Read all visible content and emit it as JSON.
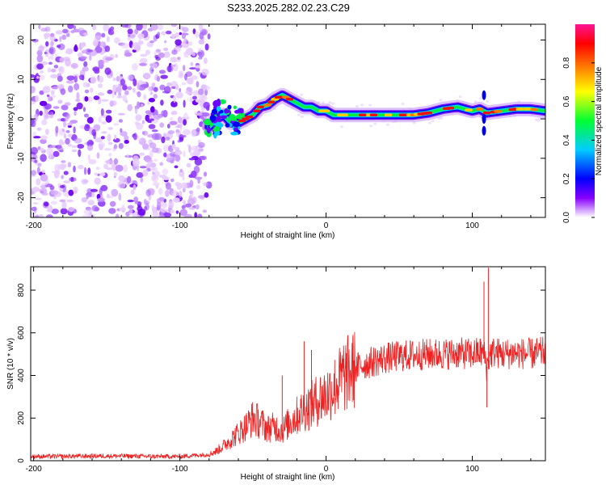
{
  "title": "S233.2025.282.02.23.C29",
  "chart_data": [
    {
      "type": "heatmap",
      "panel": "spectrogram",
      "xlabel": "Height of straight line (km)",
      "ylabel": "Frequency (Hz)",
      "xlim": [
        -202,
        150
      ],
      "ylim": [
        -25,
        24
      ],
      "x_ticks": [
        -200,
        -100,
        0,
        100
      ],
      "x_tick_labels": [
        "-200",
        "-100",
        "0",
        "100"
      ],
      "y_ticks": [
        20,
        10,
        0,
        -10,
        -20
      ],
      "y_tick_labels": [
        "20",
        "10",
        "0",
        "-10",
        "-20"
      ],
      "noise_region_x": [
        -202,
        -80
      ],
      "ridge": {
        "x": [
          -80,
          -75,
          -70,
          -65,
          -60,
          -55,
          -50,
          -45,
          -40,
          -35,
          -30,
          -25,
          -20,
          -15,
          -10,
          -5,
          0,
          5,
          10,
          20,
          30,
          40,
          50,
          60,
          70,
          80,
          90,
          100,
          105,
          110,
          120,
          130,
          140,
          150
        ],
        "y": [
          -2,
          0,
          1,
          -1,
          -1,
          0,
          1,
          3,
          3.5,
          5,
          6,
          5,
          4,
          3,
          3,
          2,
          2,
          1,
          1,
          1,
          1,
          1,
          1,
          1,
          1.5,
          2.5,
          3,
          2,
          2.5,
          1.5,
          2,
          2.5,
          2.5,
          2
        ]
      },
      "colorbar": {
        "label": "Normalized spectral amplitude",
        "range": [
          0,
          1
        ],
        "ticks": [
          0.0,
          0.2,
          0.4,
          0.6,
          0.8
        ],
        "tick_labels": [
          "0.0",
          "0.2",
          "0.4",
          "0.6",
          "0.8"
        ]
      }
    },
    {
      "type": "line",
      "panel": "snr",
      "xlabel": "Height of straight line (km)",
      "ylabel": "SNR (10 * v/v)",
      "xlim": [
        -202,
        150
      ],
      "ylim": [
        0,
        910
      ],
      "x_ticks": [
        -200,
        -100,
        0,
        100
      ],
      "x_tick_labels": [
        "-200",
        "-100",
        "0",
        "100"
      ],
      "y_ticks": [
        0,
        200,
        400,
        600,
        800
      ],
      "y_tick_labels": [
        "0",
        "200",
        "400",
        "600",
        "800"
      ],
      "series": [
        {
          "name": "SNR",
          "color": "#ee2222",
          "x": [
            -202,
            -180,
            -160,
            -140,
            -120,
            -100,
            -90,
            -80,
            -75,
            -70,
            -65,
            -60,
            -55,
            -50,
            -45,
            -40,
            -35,
            -30,
            -25,
            -20,
            -15,
            -10,
            -5,
            0,
            5,
            10,
            15,
            20,
            25,
            30,
            40,
            50,
            60,
            70,
            80,
            90,
            100,
            105,
            108,
            110,
            112,
            115,
            120,
            130,
            140,
            150
          ],
          "y": [
            20,
            20,
            22,
            22,
            20,
            20,
            25,
            30,
            45,
            70,
            100,
            130,
            160,
            200,
            180,
            150,
            160,
            140,
            180,
            210,
            240,
            260,
            290,
            310,
            340,
            380,
            410,
            430,
            450,
            460,
            480,
            490,
            495,
            500,
            500,
            505,
            500,
            510,
            500,
            440,
            500,
            510,
            500,
            505,
            500,
            510
          ]
        }
      ],
      "spikes": [
        {
          "x": -30,
          "y": 400
        },
        {
          "x": -15,
          "y": 560
        },
        {
          "x": -10,
          "y": 520
        },
        {
          "x": 12,
          "y": 540
        },
        {
          "x": 108,
          "y": 840
        },
        {
          "x": 111,
          "y": 905
        },
        {
          "x": 110,
          "y": 250
        }
      ]
    }
  ]
}
